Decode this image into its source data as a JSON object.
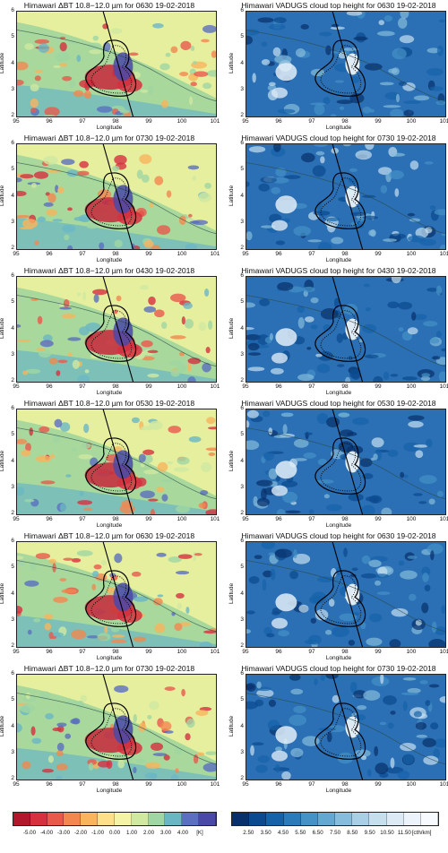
{
  "panels": [
    {
      "title": "Himawari ΔBT 10.8−12.0 µm for 0630 19-02-2018",
      "kind": "bt"
    },
    {
      "title": "Himawari VADUGS cloud top height for 0630 19-02-2018",
      "kind": "cth"
    },
    {
      "title": "Himawari ΔBT 10.8−12.0 µm for 0730 19-02-2018",
      "kind": "bt"
    },
    {
      "title": "Himawari VADUGS cloud top height for 0730 19-02-2018",
      "kind": "cth"
    },
    {
      "title": "Himawari ΔBT 10.8−12.0 µm for 0430 19-02-2018",
      "kind": "bt"
    },
    {
      "title": "Himawari VADUGS cloud top height for 0430 19-02-2018",
      "kind": "cth"
    },
    {
      "title": "Himawari ΔBT 10.8−12.0 µm for 0530 19-02-2018",
      "kind": "bt"
    },
    {
      "title": "Himawari VADUGS cloud top height for 0530 19-02-2018",
      "kind": "cth"
    },
    {
      "title": "Himawari ΔBT 10.8−12.0 µm for 0630 19-02-2018",
      "kind": "bt"
    },
    {
      "title": "Himawari VADUGS cloud top height for 0630 19-02-2018",
      "kind": "cth"
    },
    {
      "title": "Himawari ΔBT 10.8−12.0 µm for 0730 19-02-2018",
      "kind": "bt"
    },
    {
      "title": "Himawari VADUGS cloud top height for 0730 19-02-2018",
      "kind": "cth"
    }
  ],
  "axis": {
    "xlabel": "Longitude",
    "ylabel": "Latitude",
    "xticks": [
      "95",
      "96",
      "97",
      "98",
      "99",
      "100",
      "101"
    ],
    "yticks": [
      "2",
      "3",
      "4",
      "5",
      "6"
    ],
    "xlim": [
      95,
      101
    ],
    "ylim": [
      2,
      6
    ]
  },
  "colorbar_bt": {
    "labels": [
      "-5.00",
      "-4.00",
      "-3.00",
      "-2.00",
      "-1.00",
      "0.00",
      "1.00",
      "2.00",
      "3.00",
      "4.00",
      "[K]"
    ],
    "colors": [
      "#b2182b",
      "#d6303f",
      "#e8594c",
      "#f3874f",
      "#f9b45c",
      "#fde089",
      "#f4f3a6",
      "#cfe9a0",
      "#9fd6a3",
      "#6ab6c4",
      "#5a6fbf",
      "#4a49a8"
    ]
  },
  "colorbar_cth": {
    "labels": [
      "2.50",
      "3.50",
      "4.50",
      "5.50",
      "6.50",
      "7.50",
      "8.50",
      "9.50",
      "10.50",
      "11.50",
      "[cth/km]"
    ],
    "colors": [
      "#08306b",
      "#0b4a8e",
      "#1562a8",
      "#2b7bba",
      "#4592c6",
      "#64a8d2",
      "#86bcdc",
      "#a8cfe6",
      "#c6dfef",
      "#dceaf5",
      "#ecf3fa",
      "#f7fbff"
    ]
  }
}
